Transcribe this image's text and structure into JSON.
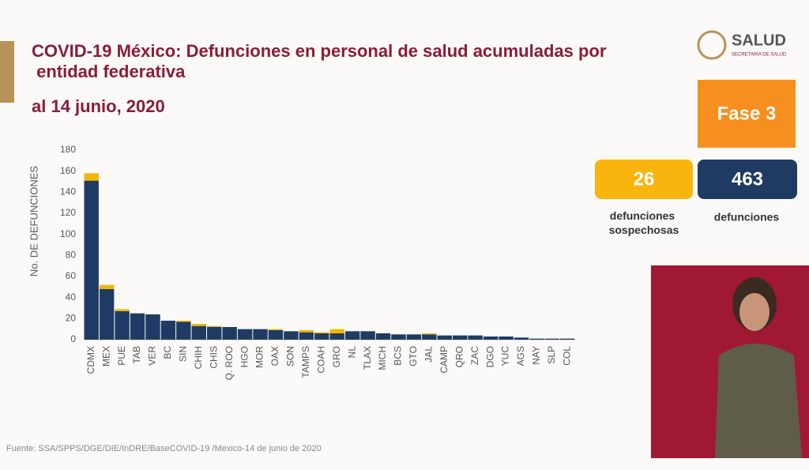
{
  "chart_data": {
    "type": "stacked-bar",
    "title": "COVID-19 México: Defunciones en personal de salud acumuladas por entidad federativa",
    "subtitle": "al 14 junio, 2020",
    "y_label": "No. DE DEFUNCIONES",
    "categories": [
      "CDMX",
      "MEX",
      "PUE",
      "TAB",
      "VER",
      "BC",
      "SIN",
      "CHIH",
      "CHIS",
      "Q. ROO",
      "HGO",
      "MOR",
      "OAX",
      "SON",
      "TAMPS",
      "COAH",
      "GRO",
      "NL",
      "TLAX",
      "MICH",
      "BCS",
      "GTO",
      "JAL",
      "CAMP",
      "QRO",
      "ZAC",
      "DGO",
      "YUC",
      "AGS",
      "NAY",
      "SLP",
      "COL"
    ],
    "series": [
      {
        "color": "#1f3b63",
        "values": [
          151,
          48,
          27,
          25,
          24,
          18,
          17,
          13,
          12,
          12,
          10,
          10,
          9,
          8,
          7,
          6,
          6,
          8,
          8,
          6,
          5,
          5,
          5,
          4,
          4,
          4,
          3,
          3,
          2,
          1,
          1,
          1
        ]
      },
      {
        "color": "#f2b705",
        "values": [
          7,
          4,
          2,
          0,
          0,
          0,
          1,
          2,
          1,
          0,
          0,
          0,
          1,
          0,
          2,
          1,
          4,
          0,
          0,
          0,
          0,
          0,
          1,
          0,
          0,
          0,
          0,
          0,
          0,
          0,
          0,
          0
        ]
      }
    ],
    "ylim": [
      0,
      180
    ],
    "yticks": [
      0,
      20,
      40,
      60,
      80,
      100,
      120,
      140,
      160,
      180
    ],
    "grid": false
  },
  "header": {
    "logo": "SALUD",
    "logo_sub": "SECRETARÍA DE SALUD"
  },
  "panel": {
    "phase": "Fase 3",
    "suspected": 26,
    "suspected_label": "defunciones sospechosas",
    "deaths": 463,
    "deaths_label": "defunciones"
  },
  "footer": "Fuente: SSA/SPPS/DGE/DIE/InDRE/BaseCOVID-19 /Mexico-14 de junio de 2020"
}
